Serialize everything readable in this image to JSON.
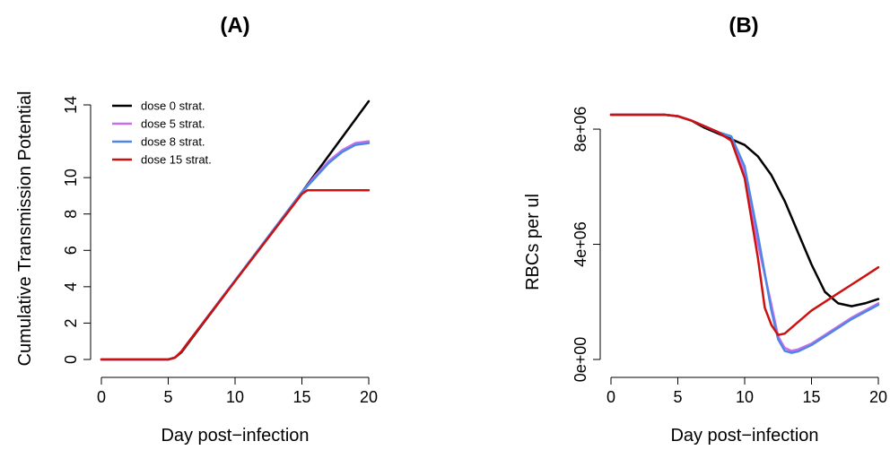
{
  "chart_data": [
    {
      "type": "line",
      "title": "(A)",
      "xlabel": "Day post−infection",
      "ylabel": "Cumulative Transmission Potential",
      "xlim": [
        0,
        20
      ],
      "ylim": [
        0,
        14
      ],
      "xticks": [
        {
          "v": 0,
          "label": "0"
        },
        {
          "v": 5,
          "label": "5"
        },
        {
          "v": 10,
          "label": "10"
        },
        {
          "v": 15,
          "label": "15"
        },
        {
          "v": 20,
          "label": "20"
        }
      ],
      "yticks": [
        {
          "v": 0,
          "label": "0"
        },
        {
          "v": 2,
          "label": "2"
        },
        {
          "v": 4,
          "label": "4"
        },
        {
          "v": 6,
          "label": "6"
        },
        {
          "v": 8,
          "label": "8"
        },
        {
          "v": 10,
          "label": "10"
        },
        {
          "v": 14,
          "label": "14"
        }
      ],
      "legend": {
        "position": "top-left",
        "entries": [
          {
            "label": "dose 0 strat.",
            "color": "#000000"
          },
          {
            "label": "dose 5 strat.",
            "color": "#c86ee8"
          },
          {
            "label": "dose 8 strat.",
            "color": "#4f86e6"
          },
          {
            "label": "dose 15 strat.",
            "color": "#cc1111"
          }
        ]
      },
      "series": [
        {
          "name": "dose 0 strat.",
          "color": "#000000",
          "points": [
            [
              0,
              0
            ],
            [
              5,
              0
            ],
            [
              5.5,
              0.1
            ],
            [
              6,
              0.4
            ],
            [
              6.5,
              0.9
            ],
            [
              15,
              9.2
            ],
            [
              20,
              14.2
            ]
          ]
        },
        {
          "name": "dose 5 strat.",
          "color": "#c86ee8",
          "points": [
            [
              0,
              0
            ],
            [
              5,
              0
            ],
            [
              5.5,
              0.1
            ],
            [
              6,
              0.45
            ],
            [
              6.5,
              0.95
            ],
            [
              15,
              9.2
            ],
            [
              16,
              10.1
            ],
            [
              17,
              10.9
            ],
            [
              18,
              11.5
            ],
            [
              19,
              11.9
            ],
            [
              20,
              12.0
            ]
          ]
        },
        {
          "name": "dose 8 strat.",
          "color": "#4f86e6",
          "points": [
            [
              0,
              0
            ],
            [
              5,
              0
            ],
            [
              5.5,
              0.1
            ],
            [
              6,
              0.45
            ],
            [
              6.5,
              0.95
            ],
            [
              15,
              9.2
            ],
            [
              16,
              10.0
            ],
            [
              17,
              10.8
            ],
            [
              18,
              11.4
            ],
            [
              19,
              11.8
            ],
            [
              20,
              11.9
            ]
          ]
        },
        {
          "name": "dose 15 strat.",
          "color": "#cc1111",
          "points": [
            [
              0,
              0
            ],
            [
              5,
              0
            ],
            [
              5.5,
              0.1
            ],
            [
              6,
              0.45
            ],
            [
              6.5,
              0.95
            ],
            [
              15,
              9.1
            ],
            [
              15.4,
              9.3
            ],
            [
              16,
              9.3
            ],
            [
              20,
              9.3
            ]
          ]
        }
      ]
    },
    {
      "type": "line",
      "title": "(B)",
      "xlabel": "Day post−infection",
      "ylabel": "RBCs per ul",
      "xlim": [
        0,
        20
      ],
      "ylim": [
        0,
        8500000
      ],
      "xticks": [
        {
          "v": 0,
          "label": "0"
        },
        {
          "v": 5,
          "label": "5"
        },
        {
          "v": 10,
          "label": "10"
        },
        {
          "v": 15,
          "label": "15"
        },
        {
          "v": 20,
          "label": "20"
        }
      ],
      "yticks": [
        {
          "v": 0,
          "label": "0e+00"
        },
        {
          "v": 4000000,
          "label": "4e+06"
        },
        {
          "v": 8000000,
          "label": "8e+06"
        }
      ],
      "series": [
        {
          "name": "dose 0 strat.",
          "color": "#000000",
          "points": [
            [
              0,
              8500000
            ],
            [
              4,
              8500000
            ],
            [
              5,
              8450000
            ],
            [
              6,
              8300000
            ],
            [
              7,
              8050000
            ],
            [
              8,
              7850000
            ],
            [
              9,
              7650000
            ],
            [
              10,
              7450000
            ],
            [
              11,
              7050000
            ],
            [
              12,
              6400000
            ],
            [
              13,
              5500000
            ],
            [
              14,
              4400000
            ],
            [
              15,
              3300000
            ],
            [
              16,
              2350000
            ],
            [
              17,
              1950000
            ],
            [
              18,
              1850000
            ],
            [
              19,
              1950000
            ],
            [
              20,
              2100000
            ]
          ]
        },
        {
          "name": "dose 5 strat.",
          "color": "#c86ee8",
          "points": [
            [
              0,
              8500000
            ],
            [
              4,
              8500000
            ],
            [
              5,
              8450000
            ],
            [
              6,
              8300000
            ],
            [
              7,
              8100000
            ],
            [
              8,
              7900000
            ],
            [
              9,
              7600000
            ],
            [
              10,
              6500000
            ],
            [
              11,
              4000000
            ],
            [
              12,
              1900000
            ],
            [
              12.5,
              800000
            ],
            [
              13,
              400000
            ],
            [
              13.5,
              300000
            ],
            [
              14,
              350000
            ],
            [
              15,
              550000
            ],
            [
              16,
              850000
            ],
            [
              17,
              1150000
            ],
            [
              18,
              1450000
            ],
            [
              19,
              1700000
            ],
            [
              20,
              1950000
            ]
          ]
        },
        {
          "name": "dose 8 strat.",
          "color": "#4f86e6",
          "points": [
            [
              0,
              8500000
            ],
            [
              4,
              8500000
            ],
            [
              5,
              8450000
            ],
            [
              6,
              8300000
            ],
            [
              7,
              8100000
            ],
            [
              8,
              7900000
            ],
            [
              9,
              7750000
            ],
            [
              10,
              6700000
            ],
            [
              11,
              4300000
            ],
            [
              12,
              1700000
            ],
            [
              12.5,
              700000
            ],
            [
              13,
              300000
            ],
            [
              13.5,
              230000
            ],
            [
              14,
              280000
            ],
            [
              15,
              500000
            ],
            [
              16,
              800000
            ],
            [
              17,
              1100000
            ],
            [
              18,
              1400000
            ],
            [
              19,
              1650000
            ],
            [
              20,
              1900000
            ]
          ]
        },
        {
          "name": "dose 15 strat.",
          "color": "#cc1111",
          "points": [
            [
              0,
              8500000
            ],
            [
              4,
              8500000
            ],
            [
              5,
              8450000
            ],
            [
              6,
              8300000
            ],
            [
              7,
              8100000
            ],
            [
              8,
              7900000
            ],
            [
              9,
              7600000
            ],
            [
              10,
              6300000
            ],
            [
              11,
              3500000
            ],
            [
              11.5,
              1800000
            ],
            [
              12,
              1200000
            ],
            [
              12.5,
              850000
            ],
            [
              13,
              900000
            ],
            [
              14,
              1300000
            ],
            [
              15,
              1700000
            ],
            [
              16,
              2000000
            ],
            [
              17,
              2300000
            ],
            [
              18,
              2600000
            ],
            [
              19,
              2900000
            ],
            [
              20,
              3200000
            ]
          ]
        }
      ]
    }
  ]
}
